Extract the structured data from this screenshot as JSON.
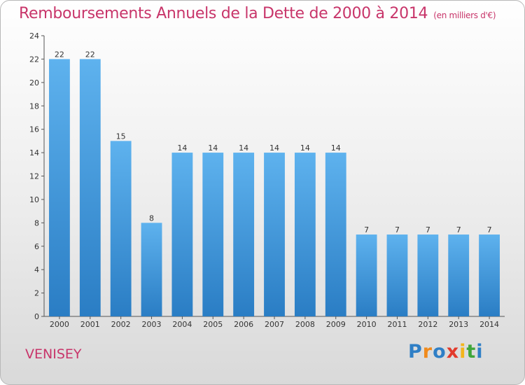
{
  "title": "Remboursements Annuels de la Dette de 2000 à 2014",
  "subtitle": "(en milliers d'€)",
  "town": "VENISEY",
  "logo_letters": [
    "P",
    "r",
    "o",
    "x",
    "i",
    "t",
    "i"
  ],
  "chart_data": {
    "type": "bar",
    "title": "Remboursements Annuels de la Dette de 2000 à 2014",
    "subtitle": "(en milliers d'€)",
    "xlabel": "",
    "ylabel": "",
    "categories": [
      "2000",
      "2001",
      "2002",
      "2003",
      "2004",
      "2005",
      "2006",
      "2007",
      "2008",
      "2009",
      "2010",
      "2011",
      "2012",
      "2013",
      "2014"
    ],
    "values": [
      22,
      22,
      15,
      8,
      14,
      14,
      14,
      14,
      14,
      14,
      7,
      7,
      7,
      7,
      7
    ],
    "data_labels": [
      "22",
      "22",
      "15",
      "8",
      "14",
      "14",
      "14",
      "14",
      "14",
      "14",
      "7",
      "7",
      "7",
      "7",
      "7"
    ],
    "ylim": [
      0,
      24
    ],
    "yticks": [
      0,
      2,
      4,
      6,
      8,
      10,
      12,
      14,
      16,
      18,
      20,
      22,
      24
    ],
    "grid": false,
    "bar_color": "#4a9ee3"
  }
}
